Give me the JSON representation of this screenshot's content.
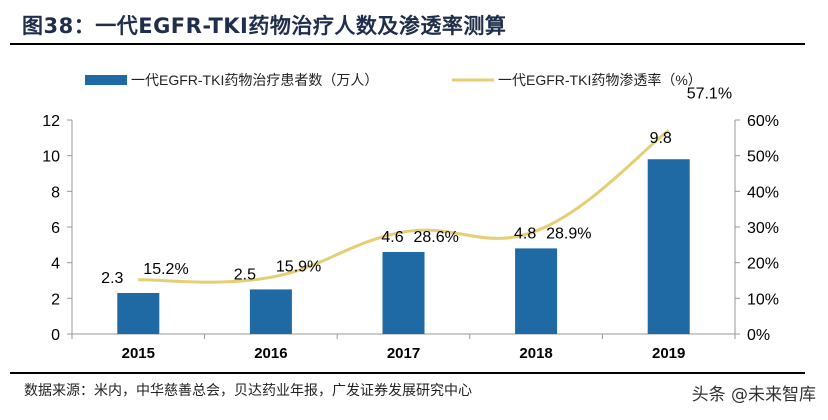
{
  "title": "图38：一代EGFR-TKI药物治疗人数及渗透率测算",
  "source": "数据来源：米内，中华慈善总会，贝达药业年报，广发证券发展研究中心",
  "watermark": "头条 @未来智库",
  "chart_data": {
    "type": "bar+line",
    "categories": [
      "2015",
      "2016",
      "2017",
      "2018",
      "2019"
    ],
    "series": [
      {
        "name": "一代EGFR-TKI药物治疗患者数（万人）",
        "type": "bar",
        "axis": "left",
        "color": "#1f6aa5",
        "values": [
          2.3,
          2.5,
          4.6,
          4.8,
          9.8
        ],
        "labels": [
          "2.3",
          "2.5",
          "4.6",
          "4.8",
          "9.8"
        ]
      },
      {
        "name": "一代EGFR-TKI药物渗透率（%）",
        "type": "line",
        "axis": "right",
        "smooth": true,
        "color": "#e5cf74",
        "values": [
          15.2,
          15.9,
          28.6,
          28.9,
          57.1
        ],
        "labels": [
          "15.2%",
          "15.9%",
          "28.6%",
          "28.9%",
          "57.1%"
        ]
      }
    ],
    "ylim_left": [
      0,
      12
    ],
    "yticks_left": [
      "0",
      "2",
      "4",
      "6",
      "8",
      "10",
      "12"
    ],
    "ylim_right": [
      0,
      60
    ],
    "yticks_right": [
      "0%",
      "10%",
      "20%",
      "30%",
      "40%",
      "50%",
      "60%"
    ],
    "grid": false,
    "legend_position": "top"
  }
}
